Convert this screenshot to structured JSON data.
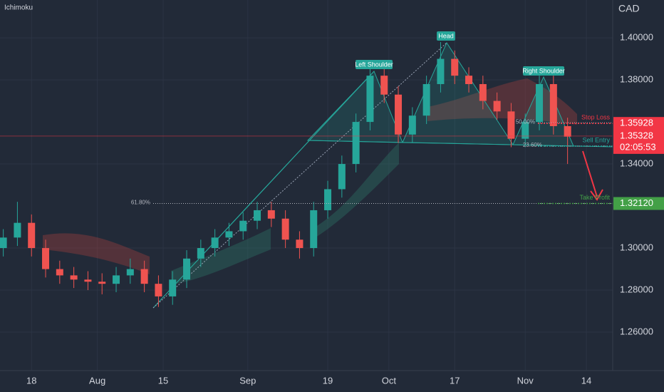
{
  "chart_data": {
    "type": "candlestick",
    "title": "Ichimoku",
    "y_axis_label": "CAD",
    "x": [
      -6,
      -3,
      0,
      3,
      6,
      9,
      12,
      15,
      18,
      21,
      24,
      27,
      30,
      33,
      36,
      39,
      42,
      45,
      48,
      51,
      54,
      57,
      60,
      63,
      66,
      69,
      72,
      75,
      78,
      81,
      84,
      87,
      90,
      93,
      96,
      99,
      102,
      105,
      108,
      111,
      114
    ],
    "open": [
      1.3,
      1.305,
      1.312,
      1.3,
      1.29,
      1.287,
      1.285,
      1.284,
      1.283,
      1.287,
      1.29,
      1.283,
      1.277,
      1.285,
      1.295,
      1.3,
      1.305,
      1.308,
      1.313,
      1.318,
      1.314,
      1.304,
      1.3,
      1.318,
      1.328,
      1.34,
      1.36,
      1.382,
      1.373,
      1.354,
      1.363,
      1.378,
      1.39,
      1.382,
      1.378,
      1.37,
      1.365,
      1.352,
      1.36,
      1.378,
      1.358
    ],
    "high": [
      1.309,
      1.322,
      1.316,
      1.304,
      1.294,
      1.291,
      1.289,
      1.288,
      1.291,
      1.295,
      1.294,
      1.287,
      1.289,
      1.299,
      1.304,
      1.309,
      1.312,
      1.317,
      1.322,
      1.322,
      1.318,
      1.308,
      1.322,
      1.332,
      1.344,
      1.364,
      1.386,
      1.386,
      1.377,
      1.367,
      1.382,
      1.398,
      1.394,
      1.386,
      1.382,
      1.374,
      1.369,
      1.364,
      1.382,
      1.382,
      1.362
    ],
    "low": [
      1.296,
      1.301,
      1.296,
      1.286,
      1.283,
      1.281,
      1.28,
      1.278,
      1.279,
      1.283,
      1.279,
      1.272,
      1.273,
      1.281,
      1.291,
      1.296,
      1.301,
      1.304,
      1.309,
      1.31,
      1.3,
      1.295,
      1.296,
      1.314,
      1.324,
      1.336,
      1.356,
      1.369,
      1.35,
      1.35,
      1.359,
      1.374,
      1.378,
      1.374,
      1.366,
      1.361,
      1.348,
      1.348,
      1.356,
      1.354,
      1.34
    ],
    "close": [
      1.305,
      1.312,
      1.3,
      1.29,
      1.287,
      1.285,
      1.284,
      1.283,
      1.287,
      1.29,
      1.283,
      1.277,
      1.285,
      1.295,
      1.3,
      1.305,
      1.308,
      1.313,
      1.318,
      1.314,
      1.304,
      1.3,
      1.318,
      1.328,
      1.34,
      1.36,
      1.382,
      1.373,
      1.354,
      1.363,
      1.378,
      1.39,
      1.382,
      1.378,
      1.37,
      1.365,
      1.352,
      1.36,
      1.378,
      1.358,
      1.353
    ],
    "up_color": "#26a69a",
    "down_color": "#ef5350",
    "xlim": [
      -6.7,
      123.6
    ],
    "xticks": [
      {
        "value": 0,
        "label": "18"
      },
      {
        "value": 14,
        "label": "Aug"
      },
      {
        "value": 28,
        "label": "15"
      },
      {
        "value": 46,
        "label": "Sep"
      },
      {
        "value": 63,
        "label": "19"
      },
      {
        "value": 76,
        "label": "Oct"
      },
      {
        "value": 90,
        "label": "17"
      },
      {
        "value": 105,
        "label": "Nov"
      },
      {
        "value": 118,
        "label": "14"
      }
    ],
    "ylim": [
      1.2417,
      1.418
    ],
    "yticks": [
      {
        "value": 1.26,
        "label": "1.26000"
      },
      {
        "value": 1.28,
        "label": "1.28000"
      },
      {
        "value": 1.3,
        "label": "1.30000"
      },
      {
        "value": 1.34,
        "label": "1.34000"
      },
      {
        "value": 1.38,
        "label": "1.38000"
      },
      {
        "value": 1.4,
        "label": "1.40000"
      }
    ],
    "grid": true,
    "pattern_labels": [
      "Left Shoulder",
      "Head",
      "Right Shoulder"
    ],
    "fib_levels": [
      {
        "label": "61.80%",
        "value": 1.3212
      },
      {
        "label": "50.00%",
        "value": 1.3596
      },
      {
        "label": "23.60%",
        "value": 1.3485
      }
    ],
    "trade_levels": [
      {
        "name": "Stop Loss",
        "value": 1.35928,
        "label": "1.35928",
        "color": "#f23645"
      },
      {
        "name": "Sell Entry",
        "value": 1.3485,
        "color": "#26a69a"
      },
      {
        "name": "Take Profit",
        "value": 1.3212,
        "label": "1.32120",
        "color": "#43a047"
      }
    ],
    "current_price": {
      "value": 1.35328,
      "label": "1.35328",
      "countdown": "02:05:53",
      "color": "#f23645"
    }
  }
}
